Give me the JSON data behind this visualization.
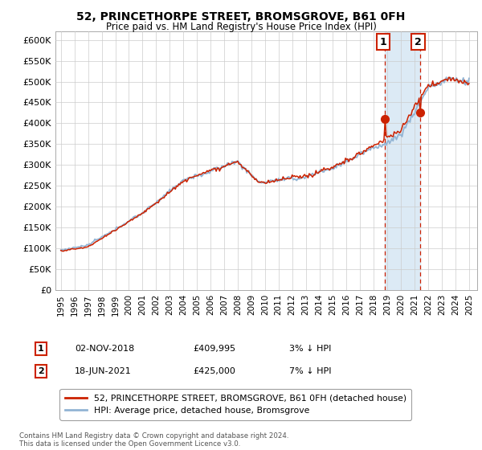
{
  "title": "52, PRINCETHORPE STREET, BROMSGROVE, B61 0FH",
  "subtitle": "Price paid vs. HM Land Registry's House Price Index (HPI)",
  "legend_line1": "52, PRINCETHORPE STREET, BROMSGROVE, B61 0FH (detached house)",
  "legend_line2": "HPI: Average price, detached house, Bromsgrove",
  "transaction1_date": "02-NOV-2018",
  "transaction1_price": "£409,995",
  "transaction1_hpi": "3% ↓ HPI",
  "transaction2_date": "18-JUN-2021",
  "transaction2_price": "£425,000",
  "transaction2_hpi": "7% ↓ HPI",
  "footnote": "Contains HM Land Registry data © Crown copyright and database right 2024.\nThis data is licensed under the Open Government Licence v3.0.",
  "hpi_color": "#92b4d4",
  "price_color": "#cc2200",
  "shade_color": "#dceaf5",
  "vline_color": "#cc2200",
  "background_color": "#ffffff",
  "grid_color": "#cccccc",
  "ylim_min": 0,
  "ylim_max": 620000,
  "t1_year": 2018.833,
  "t2_year": 2021.417,
  "t1_price": 409995,
  "t2_price": 425000
}
